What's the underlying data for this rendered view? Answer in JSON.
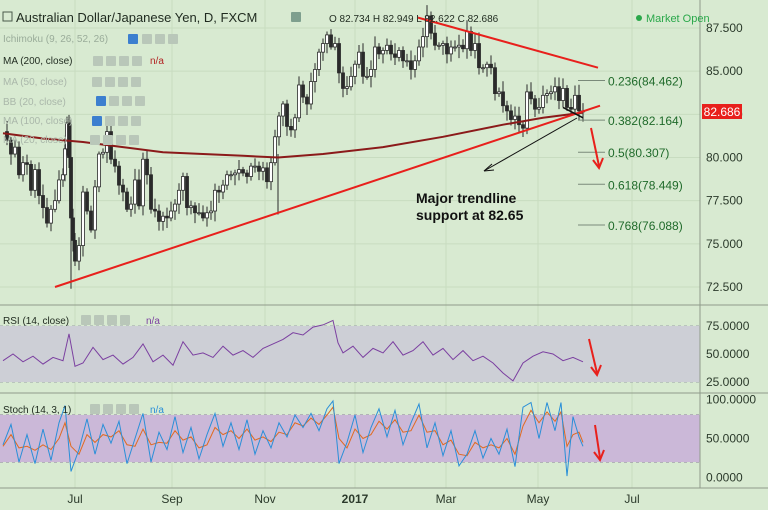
{
  "header": {
    "title": "Australian Dollar/Japanese Yen, D, FXCM",
    "ohlc": "O 82.734  H 82.949  L 82.622  C 82.686",
    "market_status": "Market Open"
  },
  "indicators": {
    "ichimoku": "Ichimoku (9, 26, 52, 26)",
    "ma200": "MA (200, close)",
    "ma200_value": "n/a",
    "faded": [
      "MA (50, close)",
      "BB (20, close)",
      "MA (100, close)",
      "MA (20, close)"
    ]
  },
  "annotation": {
    "line1": "Major trendline",
    "line2": "support at 82.65"
  },
  "price_badge": "82.686",
  "fib": [
    {
      "label": "0.236(84.462)",
      "value": 84.462
    },
    {
      "label": "0.382(82.164)",
      "value": 82.164
    },
    {
      "label": "0.5(80.307)",
      "value": 80.307
    },
    {
      "label": "0.618(78.449)",
      "value": 78.449
    },
    {
      "label": "0.768(76.088)",
      "value": 76.088
    }
  ],
  "rsi_panel": {
    "label": "RSI (14, close)",
    "value": "n/a",
    "ticks": [
      "75.0000",
      "50.0000",
      "25.0000"
    ]
  },
  "stoch_panel": {
    "label": "Stoch (14, 3, 1)",
    "value": "n/a",
    "ticks": [
      "100.0000",
      "50.0000",
      "0.0000"
    ]
  },
  "colors": {
    "bg": "#d8ead1",
    "candle": "#2a2a2a",
    "ma": "#8b1a1a",
    "trend": "#e8201c",
    "rsi": "#7b3fa0",
    "stoch_k": "#2a8fd8",
    "stoch_d": "#e06a20",
    "badge": "#e8201c"
  },
  "chart_data": {
    "type": "candlestick",
    "x_ticks": [
      "Jul",
      "Sep",
      "Nov",
      "2017",
      "Mar",
      "May",
      "Jul"
    ],
    "y_ticks": [
      "87.500",
      "85.000",
      "82.500",
      "80.000",
      "77.500",
      "75.000",
      "72.500"
    ],
    "ylim": [
      71.5,
      88.3
    ],
    "close_path": [
      [
        0,
        81.5
      ],
      [
        4,
        81.0
      ],
      [
        8,
        80.2
      ],
      [
        12,
        80.6
      ],
      [
        16,
        79.0
      ],
      [
        20,
        79.7
      ],
      [
        24,
        79.6
      ],
      [
        28,
        78.1
      ],
      [
        32,
        79.3
      ],
      [
        36,
        77.8
      ],
      [
        40,
        77.1
      ],
      [
        44,
        76.2
      ],
      [
        48,
        77.0
      ],
      [
        52,
        77.5
      ],
      [
        56,
        78.7
      ],
      [
        60,
        79.0
      ],
      [
        62,
        80.5
      ],
      [
        64,
        82.0
      ],
      [
        66,
        80.0
      ],
      [
        68,
        76.5
      ],
      [
        70,
        75.2
      ],
      [
        72,
        74.0
      ],
      [
        76,
        74.9
      ],
      [
        80,
        78.0
      ],
      [
        84,
        76.9
      ],
      [
        88,
        75.8
      ],
      [
        92,
        78.3
      ],
      [
        96,
        80.2
      ],
      [
        100,
        80.3
      ],
      [
        104,
        81.5
      ],
      [
        108,
        79.9
      ],
      [
        112,
        79.5
      ],
      [
        116,
        78.4
      ],
      [
        120,
        78.0
      ],
      [
        124,
        77.0
      ],
      [
        128,
        77.3
      ],
      [
        132,
        78.7
      ],
      [
        136,
        77.2
      ],
      [
        140,
        79.9
      ],
      [
        144,
        79.0
      ],
      [
        148,
        77.0
      ],
      [
        152,
        76.9
      ],
      [
        156,
        76.3
      ],
      [
        160,
        76.6
      ],
      [
        164,
        76.5
      ],
      [
        168,
        76.9
      ],
      [
        172,
        77.3
      ],
      [
        176,
        78.1
      ],
      [
        180,
        78.9
      ],
      [
        184,
        77.1
      ],
      [
        188,
        77.2
      ],
      [
        192,
        76.8
      ],
      [
        196,
        76.8
      ],
      [
        200,
        76.5
      ],
      [
        204,
        76.8
      ],
      [
        208,
        76.9
      ],
      [
        212,
        78.1
      ],
      [
        216,
        78.0
      ],
      [
        220,
        78.4
      ],
      [
        224,
        79.0
      ],
      [
        228,
        79.0
      ],
      [
        232,
        79.1
      ],
      [
        236,
        79.3
      ],
      [
        240,
        79.1
      ],
      [
        244,
        78.9
      ],
      [
        248,
        79.5
      ],
      [
        252,
        79.5
      ],
      [
        256,
        79.2
      ],
      [
        260,
        79.4
      ],
      [
        264,
        78.6
      ],
      [
        268,
        79.7
      ],
      [
        272,
        81.2
      ],
      [
        276,
        82.4
      ],
      [
        280,
        83.1
      ],
      [
        284,
        81.8
      ],
      [
        288,
        81.6
      ],
      [
        292,
        82.3
      ],
      [
        296,
        84.2
      ],
      [
        300,
        83.5
      ],
      [
        304,
        83.1
      ],
      [
        308,
        84.4
      ],
      [
        312,
        85.1
      ],
      [
        316,
        86.1
      ],
      [
        320,
        86.6
      ],
      [
        324,
        87.1
      ],
      [
        328,
        86.4
      ],
      [
        332,
        86.6
      ],
      [
        336,
        84.9
      ],
      [
        340,
        84.0
      ],
      [
        344,
        84.1
      ],
      [
        348,
        84.7
      ],
      [
        352,
        85.4
      ],
      [
        356,
        86.1
      ],
      [
        360,
        84.7
      ],
      [
        364,
        84.7
      ],
      [
        368,
        85.1
      ],
      [
        372,
        86.4
      ],
      [
        376,
        86.0
      ],
      [
        380,
        86.2
      ],
      [
        384,
        86.5
      ],
      [
        388,
        86.0
      ],
      [
        392,
        85.8
      ],
      [
        396,
        86.2
      ],
      [
        400,
        85.6
      ],
      [
        404,
        85.6
      ],
      [
        408,
        85.1
      ],
      [
        412,
        85.6
      ],
      [
        416,
        86.4
      ],
      [
        420,
        87.0
      ],
      [
        424,
        88.2
      ],
      [
        428,
        87.2
      ],
      [
        432,
        86.5
      ],
      [
        436,
        86.5
      ],
      [
        440,
        86.6
      ],
      [
        444,
        86.0
      ],
      [
        448,
        86.4
      ],
      [
        452,
        86.4
      ],
      [
        456,
        86.5
      ],
      [
        460,
        86.3
      ],
      [
        464,
        87.3
      ],
      [
        468,
        86.2
      ],
      [
        472,
        86.6
      ],
      [
        476,
        85.2
      ],
      [
        480,
        85.2
      ],
      [
        484,
        85.4
      ],
      [
        488,
        85.2
      ],
      [
        492,
        83.7
      ],
      [
        496,
        83.8
      ],
      [
        500,
        83.0
      ],
      [
        504,
        82.7
      ],
      [
        508,
        82.2
      ],
      [
        512,
        82.4
      ],
      [
        516,
        81.9
      ],
      [
        520,
        81.7
      ],
      [
        524,
        83.8
      ],
      [
        528,
        83.4
      ],
      [
        532,
        82.8
      ],
      [
        536,
        82.9
      ],
      [
        540,
        83.6
      ],
      [
        544,
        83.7
      ],
      [
        548,
        83.8
      ],
      [
        552,
        84.1
      ],
      [
        556,
        83.3
      ],
      [
        560,
        84.0
      ],
      [
        564,
        82.9
      ],
      [
        568,
        82.8
      ],
      [
        572,
        83.6
      ],
      [
        576,
        82.7
      ],
      [
        580,
        82.7
      ]
    ],
    "ma200_path": [
      [
        0,
        81.4
      ],
      [
        40,
        81.1
      ],
      [
        80,
        80.9
      ],
      [
        120,
        80.6
      ],
      [
        160,
        80.3
      ],
      [
        200,
        80.2
      ],
      [
        240,
        80.1
      ],
      [
        275,
        80.0
      ],
      [
        320,
        80.2
      ],
      [
        380,
        80.6
      ],
      [
        440,
        81.2
      ],
      [
        500,
        81.9
      ],
      [
        540,
        82.3
      ],
      [
        580,
        82.6
      ]
    ],
    "trendlines": [
      {
        "x1": 55,
        "y1": 72.5,
        "x2": 600,
        "y2": 83.0
      },
      {
        "x1": 418,
        "y1": 88.1,
        "x2": 598,
        "y2": 85.2
      }
    ],
    "rsi_ylim": [
      18,
      82
    ],
    "rsi_path": [
      [
        0,
        44
      ],
      [
        10,
        50
      ],
      [
        20,
        43
      ],
      [
        30,
        48
      ],
      [
        40,
        41
      ],
      [
        50,
        47
      ],
      [
        60,
        44
      ],
      [
        66,
        68
      ],
      [
        72,
        39
      ],
      [
        80,
        42
      ],
      [
        90,
        56
      ],
      [
        100,
        45
      ],
      [
        110,
        49
      ],
      [
        120,
        41
      ],
      [
        130,
        47
      ],
      [
        140,
        59
      ],
      [
        150,
        43
      ],
      [
        160,
        49
      ],
      [
        170,
        40
      ],
      [
        180,
        61
      ],
      [
        190,
        49
      ],
      [
        200,
        51
      ],
      [
        210,
        47
      ],
      [
        220,
        57
      ],
      [
        230,
        49
      ],
      [
        240,
        53
      ],
      [
        250,
        47
      ],
      [
        260,
        55
      ],
      [
        270,
        59
      ],
      [
        280,
        63
      ],
      [
        290,
        69
      ],
      [
        300,
        67
      ],
      [
        310,
        74
      ],
      [
        320,
        76
      ],
      [
        330,
        80
      ],
      [
        335,
        60
      ],
      [
        340,
        51
      ],
      [
        350,
        57
      ],
      [
        360,
        47
      ],
      [
        370,
        55
      ],
      [
        380,
        51
      ],
      [
        390,
        61
      ],
      [
        400,
        49
      ],
      [
        410,
        53
      ],
      [
        420,
        61
      ],
      [
        430,
        49
      ],
      [
        440,
        55
      ],
      [
        450,
        45
      ],
      [
        460,
        53
      ],
      [
        470,
        44
      ],
      [
        480,
        48
      ],
      [
        490,
        42
      ],
      [
        500,
        33
      ],
      [
        510,
        26
      ],
      [
        520,
        42
      ],
      [
        530,
        48
      ],
      [
        540,
        52
      ],
      [
        550,
        50
      ],
      [
        560,
        44
      ],
      [
        570,
        47
      ],
      [
        580,
        43
      ]
    ],
    "stoch_k": [
      [
        0,
        42
      ],
      [
        8,
        68
      ],
      [
        16,
        20
      ],
      [
        24,
        55
      ],
      [
        32,
        18
      ],
      [
        40,
        62
      ],
      [
        48,
        22
      ],
      [
        56,
        70
      ],
      [
        62,
        92
      ],
      [
        68,
        8
      ],
      [
        76,
        36
      ],
      [
        84,
        75
      ],
      [
        92,
        30
      ],
      [
        100,
        68
      ],
      [
        108,
        44
      ],
      [
        116,
        72
      ],
      [
        124,
        18
      ],
      [
        132,
        50
      ],
      [
        140,
        82
      ],
      [
        148,
        20
      ],
      [
        156,
        58
      ],
      [
        164,
        36
      ],
      [
        172,
        78
      ],
      [
        180,
        32
      ],
      [
        188,
        64
      ],
      [
        196,
        24
      ],
      [
        204,
        55
      ],
      [
        212,
        82
      ],
      [
        220,
        40
      ],
      [
        228,
        70
      ],
      [
        236,
        36
      ],
      [
        244,
        74
      ],
      [
        252,
        30
      ],
      [
        260,
        60
      ],
      [
        268,
        38
      ],
      [
        276,
        70
      ],
      [
        284,
        52
      ],
      [
        292,
        80
      ],
      [
        300,
        64
      ],
      [
        308,
        82
      ],
      [
        316,
        60
      ],
      [
        324,
        88
      ],
      [
        330,
        98
      ],
      [
        336,
        18
      ],
      [
        344,
        45
      ],
      [
        352,
        80
      ],
      [
        360,
        32
      ],
      [
        368,
        64
      ],
      [
        376,
        88
      ],
      [
        384,
        52
      ],
      [
        392,
        86
      ],
      [
        400,
        42
      ],
      [
        408,
        70
      ],
      [
        416,
        94
      ],
      [
        424,
        38
      ],
      [
        432,
        70
      ],
      [
        440,
        28
      ],
      [
        448,
        60
      ],
      [
        456,
        15
      ],
      [
        464,
        30
      ],
      [
        472,
        60
      ],
      [
        480,
        25
      ],
      [
        488,
        50
      ],
      [
        496,
        30
      ],
      [
        504,
        62
      ],
      [
        512,
        14
      ],
      [
        520,
        90
      ],
      [
        528,
        96
      ],
      [
        536,
        50
      ],
      [
        544,
        96
      ],
      [
        552,
        60
      ],
      [
        558,
        96
      ],
      [
        564,
        2
      ],
      [
        570,
        78
      ],
      [
        576,
        52
      ],
      [
        580,
        40
      ]
    ],
    "stoch_d": [
      [
        0,
        40
      ],
      [
        8,
        55
      ],
      [
        16,
        38
      ],
      [
        24,
        40
      ],
      [
        32,
        35
      ],
      [
        40,
        42
      ],
      [
        48,
        36
      ],
      [
        56,
        50
      ],
      [
        62,
        70
      ],
      [
        68,
        40
      ],
      [
        76,
        30
      ],
      [
        84,
        55
      ],
      [
        92,
        45
      ],
      [
        100,
        55
      ],
      [
        108,
        52
      ],
      [
        116,
        60
      ],
      [
        124,
        42
      ],
      [
        132,
        40
      ],
      [
        140,
        62
      ],
      [
        148,
        42
      ],
      [
        156,
        45
      ],
      [
        164,
        44
      ],
      [
        172,
        60
      ],
      [
        180,
        48
      ],
      [
        188,
        52
      ],
      [
        196,
        38
      ],
      [
        204,
        42
      ],
      [
        212,
        64
      ],
      [
        220,
        55
      ],
      [
        228,
        60
      ],
      [
        236,
        50
      ],
      [
        244,
        62
      ],
      [
        252,
        48
      ],
      [
        260,
        52
      ],
      [
        268,
        46
      ],
      [
        276,
        58
      ],
      [
        284,
        55
      ],
      [
        292,
        70
      ],
      [
        300,
        66
      ],
      [
        308,
        76
      ],
      [
        316,
        68
      ],
      [
        324,
        80
      ],
      [
        330,
        90
      ],
      [
        336,
        50
      ],
      [
        344,
        38
      ],
      [
        352,
        62
      ],
      [
        360,
        50
      ],
      [
        368,
        55
      ],
      [
        376,
        72
      ],
      [
        384,
        62
      ],
      [
        392,
        74
      ],
      [
        400,
        58
      ],
      [
        408,
        60
      ],
      [
        416,
        80
      ],
      [
        424,
        58
      ],
      [
        432,
        60
      ],
      [
        440,
        42
      ],
      [
        448,
        48
      ],
      [
        456,
        30
      ],
      [
        464,
        28
      ],
      [
        472,
        45
      ],
      [
        480,
        38
      ],
      [
        488,
        42
      ],
      [
        496,
        38
      ],
      [
        504,
        50
      ],
      [
        512,
        30
      ],
      [
        520,
        66
      ],
      [
        528,
        86
      ],
      [
        536,
        70
      ],
      [
        544,
        84
      ],
      [
        552,
        72
      ],
      [
        558,
        84
      ],
      [
        564,
        40
      ],
      [
        570,
        55
      ],
      [
        576,
        58
      ],
      [
        580,
        45
      ]
    ]
  }
}
